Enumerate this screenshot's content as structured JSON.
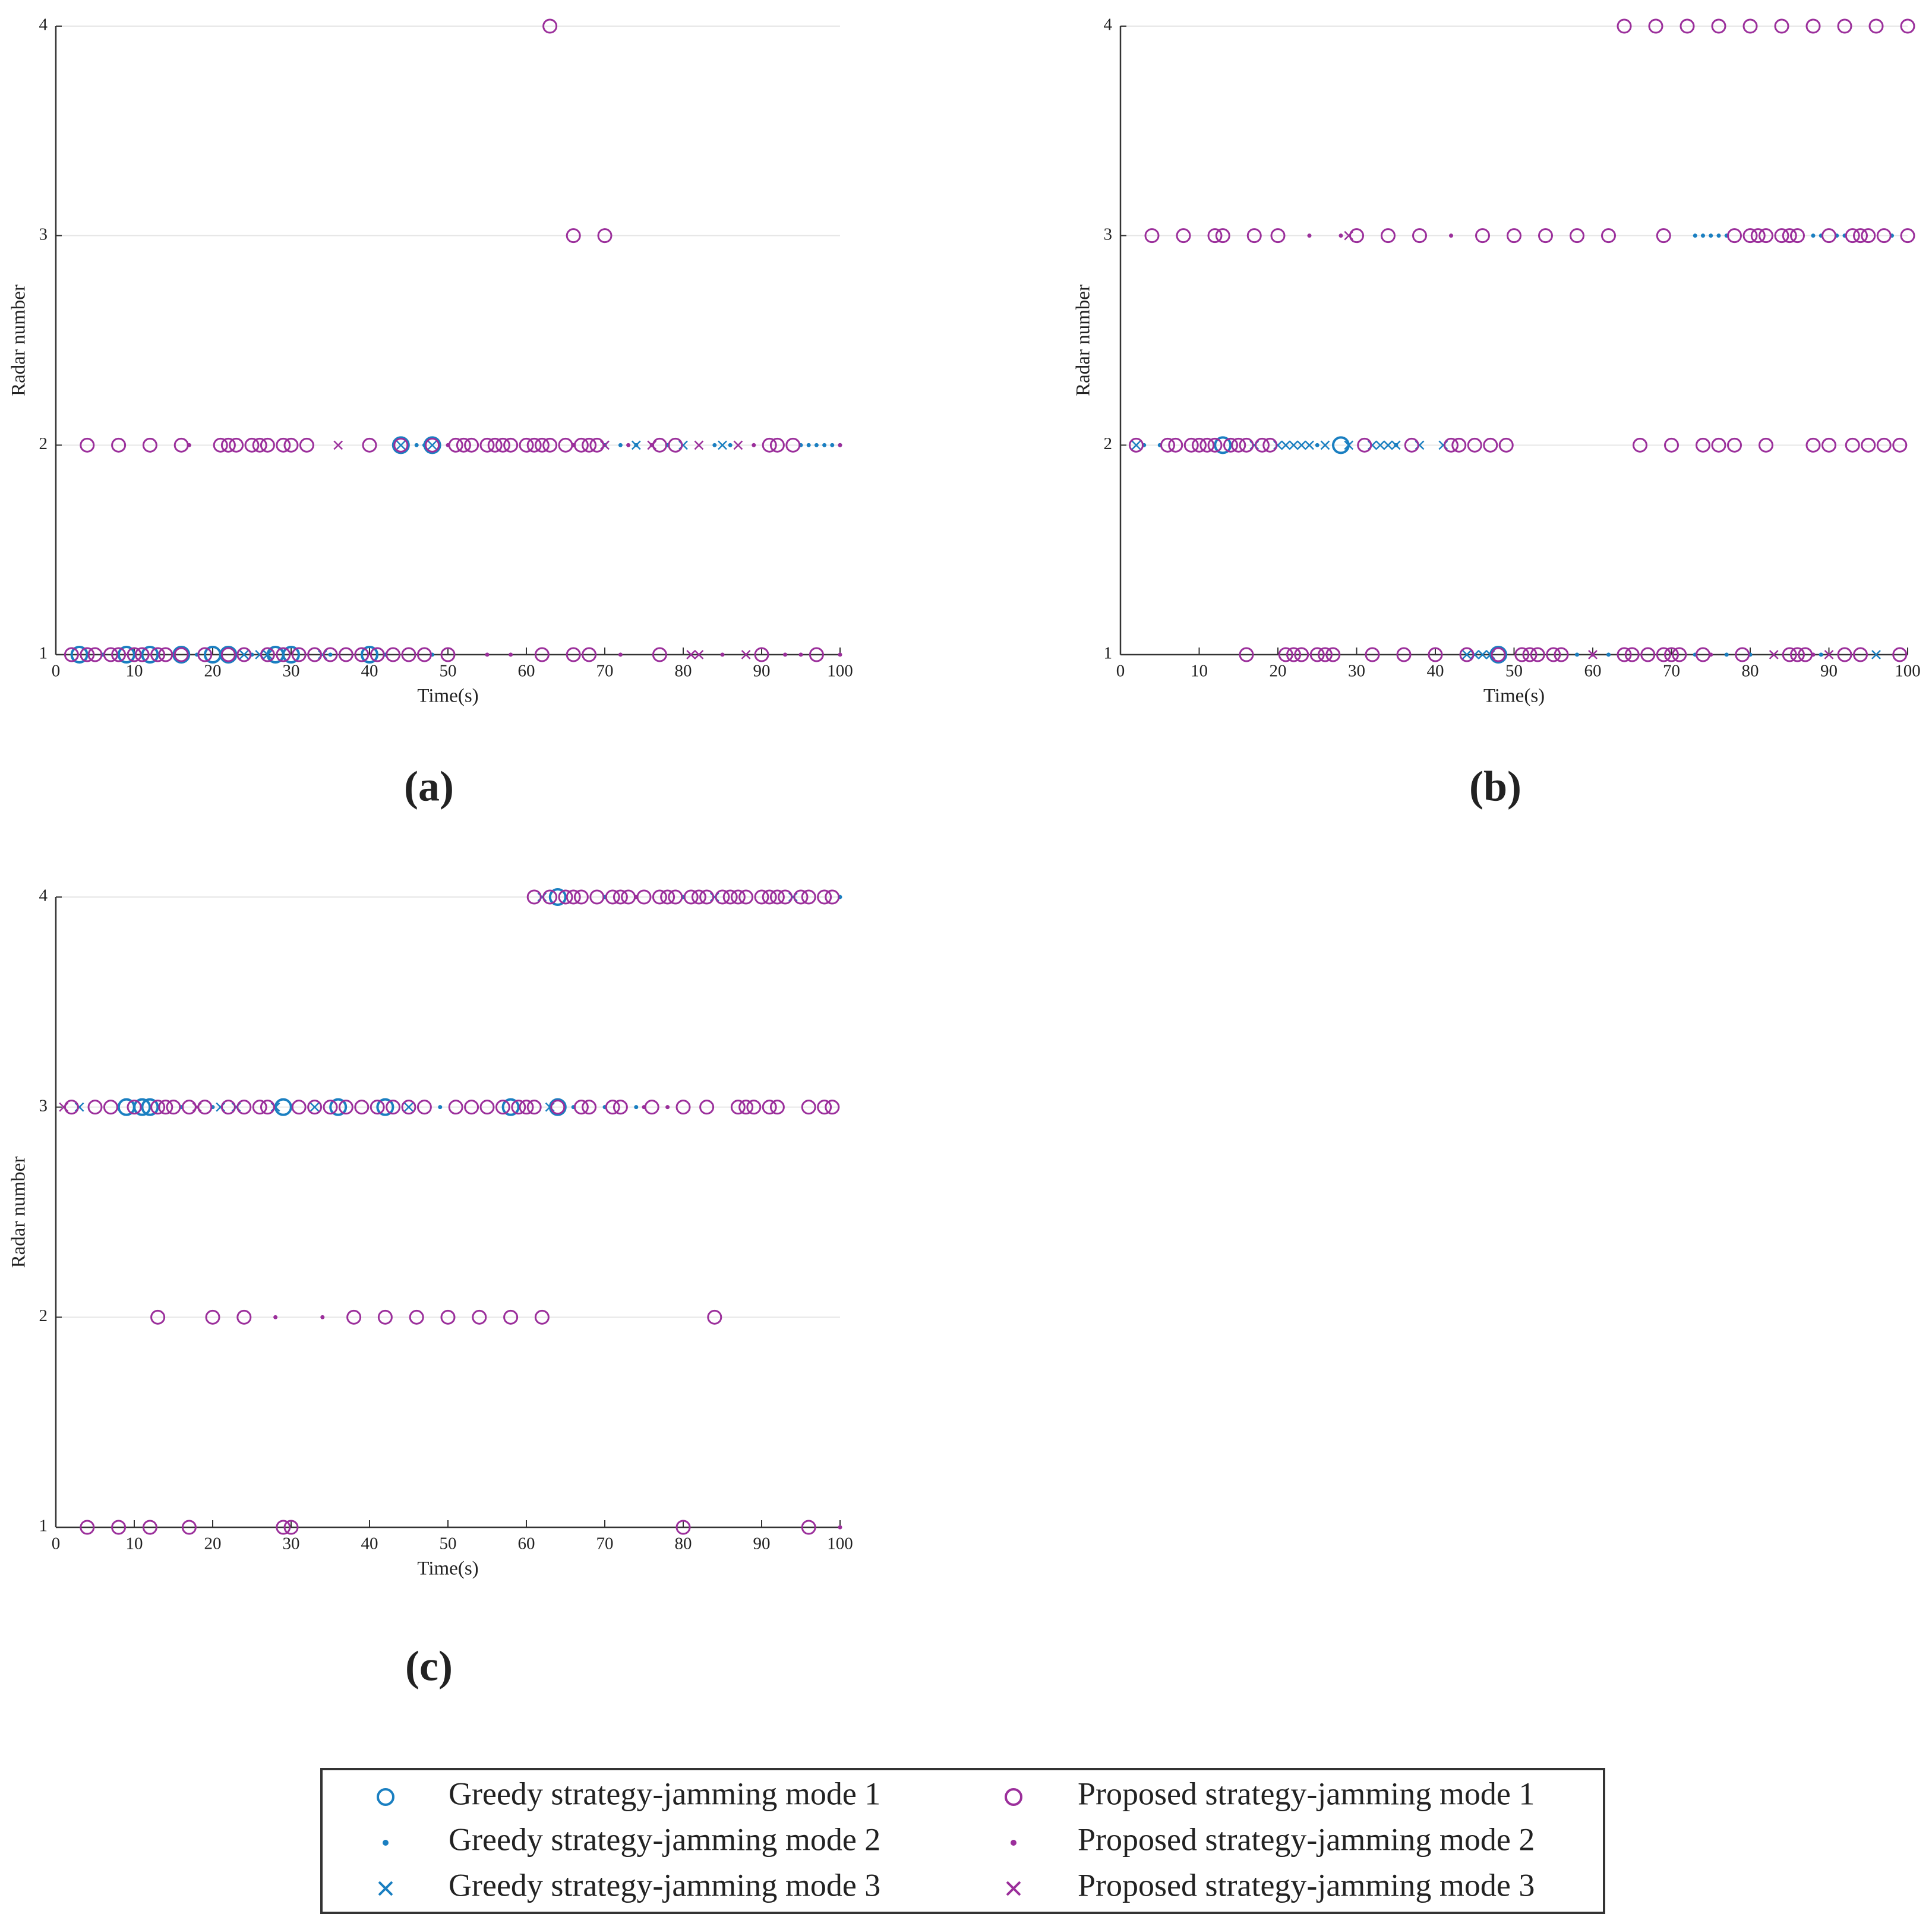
{
  "chart_data": [
    {
      "type": "scatter",
      "label": "(a)",
      "xlabel": "Time(s)",
      "ylabel": "Radar number",
      "xlim": [
        0,
        100
      ],
      "ylim": [
        1,
        4
      ],
      "xticks": [
        0,
        10,
        20,
        30,
        40,
        50,
        60,
        70,
        80,
        90,
        100
      ],
      "yticks": [
        1,
        2,
        3,
        4
      ],
      "grid": true,
      "series": [
        {
          "name": "Greedy strategy-jamming mode 1",
          "marker": "circle",
          "color": "#1a7fc1",
          "x": [
            3,
            9,
            12,
            16,
            20,
            22,
            28,
            30,
            40,
            44,
            48
          ],
          "y": [
            1,
            1,
            1,
            1,
            1,
            1,
            1,
            1,
            1,
            2,
            2
          ]
        },
        {
          "name": "Greedy strategy-jamming mode 2",
          "marker": "dot",
          "color": "#1a7fc1",
          "x": [
            6,
            15,
            18,
            25,
            35,
            42,
            48,
            46,
            47,
            70,
            72,
            74,
            78,
            84,
            86,
            95,
            96,
            97,
            98,
            99,
            100
          ],
          "y": [
            1,
            1,
            1,
            1,
            1,
            1,
            1,
            2,
            2,
            2,
            2,
            2,
            2,
            2,
            2,
            2,
            2,
            2,
            2,
            2,
            2
          ]
        },
        {
          "name": "Greedy strategy-jamming mode 3",
          "marker": "x",
          "color": "#1a7fc1",
          "x": [
            24,
            26,
            27,
            34,
            44,
            48,
            70,
            74,
            80,
            85
          ],
          "y": [
            1,
            1,
            1,
            1,
            2,
            2,
            2,
            2,
            2,
            2
          ]
        },
        {
          "name": "Proposed strategy-jamming mode 1",
          "marker": "circle",
          "color": "#9b2f9b",
          "x": [
            2,
            4,
            5,
            7,
            8,
            10,
            11,
            13,
            14,
            16,
            19,
            22,
            24,
            27,
            29,
            31,
            33,
            35,
            37,
            39,
            41,
            43,
            45,
            47,
            50,
            62,
            66,
            68,
            77,
            90,
            97,
            4,
            8,
            12,
            16,
            21,
            22,
            23,
            25,
            26,
            27,
            29,
            30,
            32,
            40,
            44,
            48,
            51,
            52,
            53,
            55,
            56,
            57,
            58,
            60,
            61,
            62,
            63,
            65,
            67,
            68,
            69,
            77,
            79,
            91,
            92,
            94,
            66,
            70,
            63
          ],
          "y": [
            1,
            1,
            1,
            1,
            1,
            1,
            1,
            1,
            1,
            1,
            1,
            1,
            1,
            1,
            1,
            1,
            1,
            1,
            1,
            1,
            1,
            1,
            1,
            1,
            1,
            1,
            1,
            1,
            1,
            1,
            1,
            2,
            2,
            2,
            2,
            2,
            2,
            2,
            2,
            2,
            2,
            2,
            2,
            2,
            2,
            2,
            2,
            2,
            2,
            2,
            2,
            2,
            2,
            2,
            2,
            2,
            2,
            2,
            2,
            2,
            2,
            2,
            2,
            2,
            2,
            2,
            2,
            3,
            3,
            4
          ]
        },
        {
          "name": "Proposed strategy-jamming mode 2",
          "marker": "dot",
          "color": "#9b2f9b",
          "x": [
            55,
            58,
            72,
            85,
            93,
            95,
            100,
            17,
            50,
            66,
            73,
            76,
            89,
            100
          ],
          "y": [
            1,
            1,
            1,
            1,
            1,
            1,
            1,
            2,
            2,
            2,
            2,
            2,
            2,
            2
          ]
        },
        {
          "name": "Proposed strategy-jamming mode 3",
          "marker": "x",
          "color": "#9b2f9b",
          "x": [
            81,
            82,
            88,
            36,
            70,
            76,
            82,
            87
          ],
          "y": [
            1,
            1,
            1,
            2,
            2,
            2,
            2,
            2
          ]
        }
      ]
    },
    {
      "type": "scatter",
      "label": "(b)",
      "xlabel": "Time(s)",
      "ylabel": "Radar number",
      "xlim": [
        0,
        100
      ],
      "ylim": [
        1,
        4
      ],
      "xticks": [
        0,
        10,
        20,
        30,
        40,
        50,
        60,
        70,
        80,
        90,
        100
      ],
      "yticks": [
        1,
        2,
        3,
        4
      ],
      "grid": true,
      "series": [
        {
          "name": "Greedy strategy-jamming mode 1",
          "marker": "circle",
          "color": "#1a7fc1",
          "x": [
            48,
            13,
            28
          ],
          "y": [
            1,
            2,
            2
          ]
        },
        {
          "name": "Greedy strategy-jamming mode 2",
          "marker": "dot",
          "color": "#1a7fc1",
          "x": [
            73,
            74,
            75,
            76,
            77,
            88,
            89,
            91,
            92,
            98,
            58,
            62,
            73,
            77,
            80,
            89,
            3,
            5,
            25,
            35
          ],
          "y": [
            3,
            3,
            3,
            3,
            3,
            3,
            3,
            3,
            3,
            3,
            1,
            1,
            1,
            1,
            1,
            1,
            2,
            2,
            2,
            2
          ]
        },
        {
          "name": "Greedy strategy-jamming mode 3",
          "marker": "x",
          "color": "#1a7fc1",
          "x": [
            2,
            17,
            20,
            21,
            22,
            23,
            24,
            26,
            29,
            32,
            33,
            34,
            35,
            38,
            41,
            44,
            45,
            46,
            47,
            96
          ],
          "y": [
            2,
            2,
            2,
            2,
            2,
            2,
            2,
            2,
            2,
            2,
            2,
            2,
            2,
            2,
            2,
            1,
            1,
            1,
            1,
            1
          ]
        },
        {
          "name": "Proposed strategy-jamming mode 1",
          "marker": "circle",
          "color": "#9b2f9b",
          "x": [
            16,
            21,
            22,
            23,
            25,
            26,
            27,
            32,
            36,
            40,
            44,
            48,
            51,
            52,
            53,
            55,
            56,
            64,
            65,
            67,
            69,
            70,
            71,
            74,
            79,
            85,
            86,
            87,
            92,
            94,
            99,
            2,
            6,
            7,
            9,
            10,
            11,
            12,
            14,
            15,
            16,
            18,
            19,
            31,
            37,
            42,
            43,
            45,
            47,
            49,
            66,
            70,
            74,
            76,
            78,
            82,
            88,
            90,
            93,
            95,
            97,
            99,
            4,
            8,
            12,
            13,
            17,
            20,
            30,
            34,
            38,
            46,
            50,
            54,
            58,
            62,
            69,
            78,
            80,
            81,
            82,
            84,
            85,
            86,
            90,
            93,
            94,
            95,
            97,
            100,
            64,
            68,
            72,
            76,
            80,
            84,
            88,
            92,
            96,
            100
          ],
          "y": [
            1,
            1,
            1,
            1,
            1,
            1,
            1,
            1,
            1,
            1,
            1,
            1,
            1,
            1,
            1,
            1,
            1,
            1,
            1,
            1,
            1,
            1,
            1,
            1,
            1,
            1,
            1,
            1,
            1,
            1,
            1,
            2,
            2,
            2,
            2,
            2,
            2,
            2,
            2,
            2,
            2,
            2,
            2,
            2,
            2,
            2,
            2,
            2,
            2,
            2,
            2,
            2,
            2,
            2,
            2,
            2,
            2,
            2,
            2,
            2,
            2,
            2,
            3,
            3,
            3,
            3,
            3,
            3,
            3,
            3,
            3,
            3,
            3,
            3,
            3,
            3,
            3,
            3,
            3,
            3,
            3,
            3,
            3,
            3,
            3,
            3,
            3,
            3,
            3,
            3,
            4,
            4,
            4,
            4,
            4,
            4,
            4,
            4,
            4,
            4
          ]
        },
        {
          "name": "Proposed strategy-jamming mode 2",
          "marker": "dot",
          "color": "#9b2f9b",
          "x": [
            24,
            28,
            42,
            60,
            75,
            88
          ],
          "y": [
            3,
            3,
            3,
            1,
            1,
            1
          ]
        },
        {
          "name": "Proposed strategy-jamming mode 3",
          "marker": "x",
          "color": "#9b2f9b",
          "x": [
            60,
            83,
            90,
            29
          ],
          "y": [
            1,
            1,
            1,
            3
          ]
        }
      ]
    },
    {
      "type": "scatter",
      "label": "(c)",
      "xlabel": "Time(s)",
      "ylabel": "Radar number",
      "xlim": [
        0,
        100
      ],
      "ylim": [
        1,
        4
      ],
      "xticks": [
        0,
        10,
        20,
        30,
        40,
        50,
        60,
        70,
        80,
        90,
        100
      ],
      "yticks": [
        1,
        2,
        3,
        4
      ],
      "grid": true,
      "series": [
        {
          "name": "Greedy strategy-jamming mode 1",
          "marker": "circle",
          "color": "#1a7fc1",
          "x": [
            9,
            11,
            12,
            29,
            36,
            42,
            58,
            64,
            64
          ],
          "y": [
            3,
            3,
            3,
            3,
            3,
            3,
            3,
            3,
            4
          ]
        },
        {
          "name": "Greedy strategy-jamming mode 2",
          "marker": "dot",
          "color": "#1a7fc1",
          "x": [
            16,
            20,
            49,
            66,
            70,
            74,
            70,
            80,
            100
          ],
          "y": [
            3,
            3,
            3,
            3,
            3,
            3,
            4,
            4,
            4
          ]
        },
        {
          "name": "Greedy strategy-jamming mode 3",
          "marker": "x",
          "color": "#1a7fc1",
          "x": [
            3,
            21,
            23,
            28,
            33,
            45,
            63,
            62,
            84,
            94
          ],
          "y": [
            3,
            3,
            3,
            3,
            3,
            3,
            3,
            4,
            4,
            4
          ]
        },
        {
          "name": "Proposed strategy-jamming mode 1",
          "marker": "circle",
          "color": "#9b2f9b",
          "x": [
            4,
            8,
            12,
            17,
            29,
            30,
            80,
            96,
            13,
            20,
            24,
            38,
            42,
            46,
            50,
            54,
            58,
            62,
            84,
            2,
            5,
            7,
            10,
            13,
            14,
            15,
            17,
            19,
            22,
            24,
            26,
            27,
            31,
            33,
            35,
            37,
            39,
            41,
            43,
            45,
            47,
            51,
            53,
            55,
            57,
            59,
            60,
            61,
            64,
            67,
            68,
            71,
            72,
            76,
            80,
            83,
            87,
            88,
            89,
            91,
            92,
            96,
            98,
            99,
            61,
            63,
            65,
            66,
            67,
            69,
            71,
            72,
            73,
            75,
            77,
            78,
            79,
            81,
            82,
            83,
            85,
            86,
            87,
            88,
            90,
            91,
            92,
            93,
            95,
            96,
            98,
            99
          ],
          "y": [
            1,
            1,
            1,
            1,
            1,
            1,
            1,
            1,
            2,
            2,
            2,
            2,
            2,
            2,
            2,
            2,
            2,
            2,
            2,
            3,
            3,
            3,
            3,
            3,
            3,
            3,
            3,
            3,
            3,
            3,
            3,
            3,
            3,
            3,
            3,
            3,
            3,
            3,
            3,
            3,
            3,
            3,
            3,
            3,
            3,
            3,
            3,
            3,
            3,
            3,
            3,
            3,
            3,
            3,
            3,
            3,
            3,
            3,
            3,
            3,
            3,
            3,
            3,
            3,
            4,
            4,
            4,
            4,
            4,
            4,
            4,
            4,
            4,
            4,
            4,
            4,
            4,
            4,
            4,
            4,
            4,
            4,
            4,
            4,
            4,
            4,
            4,
            4,
            4,
            4,
            4,
            4
          ]
        },
        {
          "name": "Proposed strategy-jamming mode 2",
          "marker": "dot",
          "color": "#9b2f9b",
          "x": [
            28,
            34,
            100,
            75,
            78,
            74
          ],
          "y": [
            2,
            2,
            1,
            3,
            3,
            4
          ]
        },
        {
          "name": "Proposed strategy-jamming mode 3",
          "marker": "x",
          "color": "#9b2f9b",
          "x": [
            1,
            18
          ],
          "y": [
            3,
            3
          ]
        }
      ]
    }
  ]
}
